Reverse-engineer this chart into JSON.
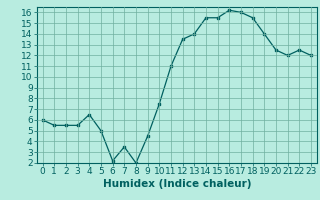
{
  "x": [
    0,
    1,
    2,
    3,
    4,
    5,
    6,
    7,
    8,
    9,
    10,
    11,
    12,
    13,
    14,
    15,
    16,
    17,
    18,
    19,
    20,
    21,
    22,
    23
  ],
  "y": [
    6,
    5.5,
    5.5,
    5.5,
    6.5,
    5,
    2.2,
    3.5,
    2.0,
    4.5,
    7.5,
    11,
    13.5,
    14,
    15.5,
    15.5,
    16.2,
    16.0,
    15.5,
    14,
    12.5,
    12,
    12.5,
    12
  ],
  "xlabel": "Humidex (Indice chaleur)",
  "ylim": [
    2,
    16.5
  ],
  "xlim": [
    -0.5,
    23.5
  ],
  "yticks": [
    2,
    3,
    4,
    5,
    6,
    7,
    8,
    9,
    10,
    11,
    12,
    13,
    14,
    15,
    16
  ],
  "xticks": [
    0,
    1,
    2,
    3,
    4,
    5,
    6,
    7,
    8,
    9,
    10,
    11,
    12,
    13,
    14,
    15,
    16,
    17,
    18,
    19,
    20,
    21,
    22,
    23
  ],
  "line_color": "#006060",
  "marker_color": "#006060",
  "bg_color": "#b8ece0",
  "grid_color": "#70b0a0",
  "axis_color": "#006060",
  "label_color": "#006060",
  "font_size": 6.5,
  "xlabel_fontsize": 7.5
}
